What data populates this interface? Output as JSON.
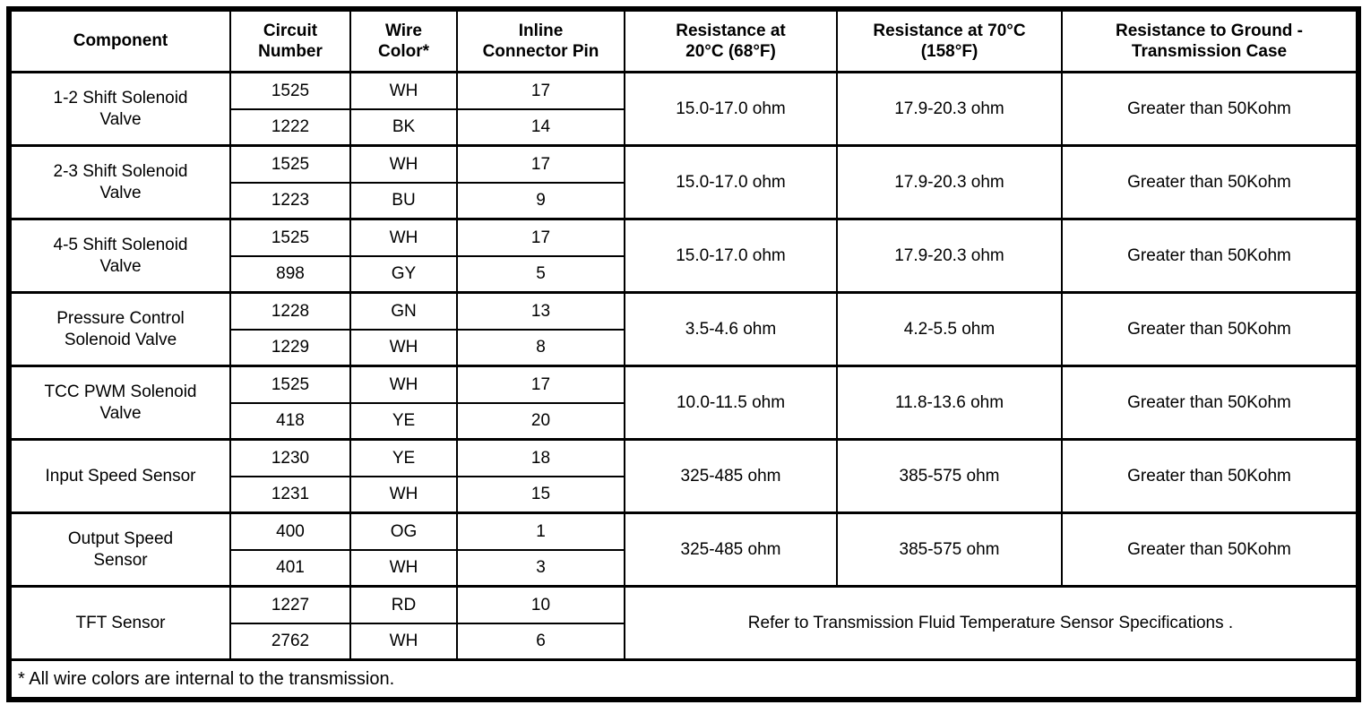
{
  "page": {
    "background": "#ffffff",
    "text_color": "#000000",
    "border_color": "#000000"
  },
  "table": {
    "columns": [
      {
        "label": "Component"
      },
      {
        "label": "Circuit\nNumber"
      },
      {
        "label": "Wire\nColor*"
      },
      {
        "label": "Inline\nConnector Pin"
      },
      {
        "label": "Resistance at\n20°C (68°F)"
      },
      {
        "label": "Resistance at 70°C\n(158°F)"
      },
      {
        "label": "Resistance to Ground -\nTransmission Case"
      }
    ],
    "rows": [
      {
        "component": "1-2 Shift Solenoid\nValve",
        "wires": [
          {
            "circuit": "1525",
            "color": "WH",
            "pin": "17"
          },
          {
            "circuit": "1222",
            "color": "BK",
            "pin": "14"
          }
        ],
        "resistance_20c": "15.0-17.0 ohm",
        "resistance_70c": "17.9-20.3 ohm",
        "resistance_ground": "Greater than 50Kohm"
      },
      {
        "component": "2-3 Shift Solenoid\nValve",
        "wires": [
          {
            "circuit": "1525",
            "color": "WH",
            "pin": "17"
          },
          {
            "circuit": "1223",
            "color": "BU",
            "pin": "9"
          }
        ],
        "resistance_20c": "15.0-17.0 ohm",
        "resistance_70c": "17.9-20.3 ohm",
        "resistance_ground": "Greater than 50Kohm"
      },
      {
        "component": "4-5 Shift Solenoid\nValve",
        "wires": [
          {
            "circuit": "1525",
            "color": "WH",
            "pin": "17"
          },
          {
            "circuit": "898",
            "color": "GY",
            "pin": "5"
          }
        ],
        "resistance_20c": "15.0-17.0 ohm",
        "resistance_70c": "17.9-20.3 ohm",
        "resistance_ground": "Greater than 50Kohm"
      },
      {
        "component": "Pressure Control\nSolenoid Valve",
        "wires": [
          {
            "circuit": "1228",
            "color": "GN",
            "pin": "13"
          },
          {
            "circuit": "1229",
            "color": "WH",
            "pin": "8"
          }
        ],
        "resistance_20c": "3.5-4.6 ohm",
        "resistance_70c": "4.2-5.5 ohm",
        "resistance_ground": "Greater than 50Kohm"
      },
      {
        "component": "TCC PWM Solenoid\nValve",
        "wires": [
          {
            "circuit": "1525",
            "color": "WH",
            "pin": "17"
          },
          {
            "circuit": "418",
            "color": "YE",
            "pin": "20"
          }
        ],
        "resistance_20c": "10.0-11.5 ohm",
        "resistance_70c": "11.8-13.6 ohm",
        "resistance_ground": "Greater than 50Kohm"
      },
      {
        "component": "Input Speed Sensor",
        "wires": [
          {
            "circuit": "1230",
            "color": "YE",
            "pin": "18"
          },
          {
            "circuit": "1231",
            "color": "WH",
            "pin": "15"
          }
        ],
        "resistance_20c": "325-485 ohm",
        "resistance_70c": "385-575 ohm",
        "resistance_ground": "Greater than 50Kohm"
      },
      {
        "component": "Output Speed\nSensor",
        "wires": [
          {
            "circuit": "400",
            "color": "OG",
            "pin": "1"
          },
          {
            "circuit": "401",
            "color": "WH",
            "pin": "3"
          }
        ],
        "resistance_20c": "325-485 ohm",
        "resistance_70c": "385-575 ohm",
        "resistance_ground": "Greater than 50Kohm"
      },
      {
        "component": "TFT Sensor",
        "wires": [
          {
            "circuit": "1227",
            "color": "RD",
            "pin": "10"
          },
          {
            "circuit": "2762",
            "color": "WH",
            "pin": "6"
          }
        ],
        "note": "Refer to Transmission Fluid Temperature Sensor Specifications ."
      }
    ],
    "footnote": "* All wire colors are internal to the transmission."
  }
}
